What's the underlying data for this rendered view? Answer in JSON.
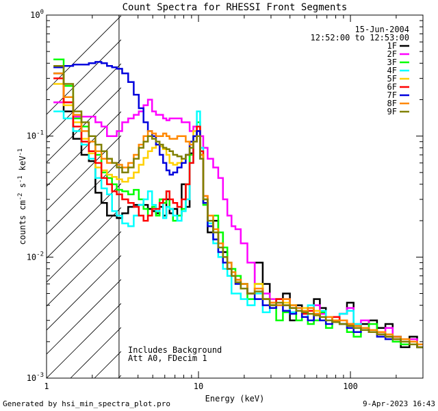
{
  "chart_data": {
    "type": "line",
    "title": "Count Spectra for RHESSI Front Segments",
    "xlabel": "Energy (keV)",
    "ylabel": "counts cm",
    "ylabel_sup1": "-2",
    "ylabel_mid": " s",
    "ylabel_sup2": "-1",
    "ylabel_end": " keV",
    "ylabel_sup3": "-1",
    "xscale": "log",
    "yscale": "log",
    "xlim": [
      1,
      300
    ],
    "ylim": [
      0.001,
      1
    ],
    "x_ticks": [
      {
        "value": 1,
        "label": "1"
      },
      {
        "value": 10,
        "label": "10"
      },
      {
        "value": 100,
        "label": "100"
      }
    ],
    "y_ticks": [
      {
        "value": 1,
        "base": "10",
        "exp": "0"
      },
      {
        "value": 0.1,
        "base": "10",
        "exp": "-1"
      },
      {
        "value": 0.01,
        "base": "10",
        "exp": "-2"
      },
      {
        "value": 0.001,
        "base": "10",
        "exp": "-3"
      }
    ],
    "info": {
      "date": "15-Jun-2004",
      "time_range": "12:52:00 to 12:53:00"
    },
    "annotations": [
      "Includes Background",
      "Att A0, FDecim 1"
    ],
    "hatched_below_keV": 3,
    "energy_grid": [
      1.2,
      1.4,
      1.6,
      1.8,
      2.0,
      2.2,
      2.4,
      2.6,
      2.8,
      3.0,
      3.3,
      3.6,
      3.9,
      4.2,
      4.5,
      4.8,
      5.1,
      5.4,
      5.7,
      6.0,
      6.3,
      6.6,
      7.0,
      7.5,
      8.0,
      8.5,
      9.0,
      9.5,
      10.0,
      10.5,
      11.0,
      12.0,
      13.0,
      14.0,
      15.0,
      16.0,
      17.0,
      18.0,
      20.0,
      22.0,
      25.0,
      28.0,
      31.0,
      34.0,
      38.0,
      42.0,
      46.0,
      50.0,
      55.0,
      60.0,
      66.0,
      72.0,
      80.0,
      90.0,
      100.0,
      110.0,
      125.0,
      140.0,
      160.0,
      180.0,
      200.0,
      230.0,
      260.0,
      290.0
    ],
    "series": [
      {
        "name": "1F",
        "color": "#000000",
        "values": [
          0.33,
          0.16,
          0.095,
          0.07,
          0.062,
          0.034,
          0.028,
          0.022,
          0.022,
          0.021,
          0.023,
          0.026,
          0.027,
          0.027,
          0.027,
          0.025,
          0.024,
          0.023,
          0.026,
          0.022,
          0.03,
          0.023,
          0.025,
          0.022,
          0.04,
          0.026,
          0.072,
          0.1,
          0.11,
          0.07,
          0.028,
          0.016,
          0.02,
          0.016,
          0.011,
          0.009,
          0.007,
          0.007,
          0.006,
          0.005,
          0.009,
          0.006,
          0.004,
          0.0045,
          0.005,
          0.003,
          0.004,
          0.0035,
          0.003,
          0.0045,
          0.0038,
          0.003,
          0.003,
          0.0034,
          0.0042,
          0.0027,
          0.0028,
          0.003,
          0.0026,
          0.0028,
          0.0022,
          0.0018,
          0.0022,
          0.0018
        ]
      },
      {
        "name": "2F",
        "color": "#ff00ff",
        "values": [
          0.19,
          0.19,
          0.145,
          0.145,
          0.145,
          0.13,
          0.12,
          0.1,
          0.1,
          0.11,
          0.13,
          0.14,
          0.15,
          0.16,
          0.18,
          0.2,
          0.16,
          0.15,
          0.15,
          0.14,
          0.135,
          0.14,
          0.14,
          0.14,
          0.13,
          0.13,
          0.11,
          0.12,
          0.12,
          0.1,
          0.08,
          0.065,
          0.055,
          0.045,
          0.03,
          0.022,
          0.018,
          0.017,
          0.013,
          0.009,
          0.006,
          0.005,
          0.0045,
          0.004,
          0.0045,
          0.0035,
          0.0038,
          0.0032,
          0.0036,
          0.004,
          0.0034,
          0.0032,
          0.003,
          0.0034,
          0.0038,
          0.0028,
          0.003,
          0.0025,
          0.0023,
          0.0026,
          0.0022,
          0.002,
          0.0021,
          0.0019
        ]
      },
      {
        "name": "3F",
        "color": "#00ff00",
        "values": [
          0.43,
          0.26,
          0.14,
          0.12,
          0.09,
          0.07,
          0.05,
          0.045,
          0.04,
          0.036,
          0.035,
          0.033,
          0.036,
          0.03,
          0.025,
          0.022,
          0.026,
          0.022,
          0.03,
          0.028,
          0.035,
          0.025,
          0.02,
          0.022,
          0.025,
          0.04,
          0.07,
          0.09,
          0.13,
          0.07,
          0.027,
          0.018,
          0.022,
          0.016,
          0.012,
          0.009,
          0.008,
          0.007,
          0.006,
          0.0045,
          0.006,
          0.0045,
          0.004,
          0.003,
          0.0035,
          0.004,
          0.003,
          0.0032,
          0.0028,
          0.003,
          0.0035,
          0.0026,
          0.003,
          0.0028,
          0.0024,
          0.0022,
          0.0026,
          0.0028,
          0.0024,
          0.0022,
          0.002,
          0.0019,
          0.002,
          0.0018
        ]
      },
      {
        "name": "4F",
        "color": "#00ffff",
        "values": [
          0.16,
          0.14,
          0.11,
          0.085,
          0.065,
          0.045,
          0.037,
          0.033,
          0.024,
          0.022,
          0.019,
          0.018,
          0.022,
          0.027,
          0.03,
          0.035,
          0.027,
          0.024,
          0.028,
          0.021,
          0.026,
          0.025,
          0.022,
          0.02,
          0.024,
          0.03,
          0.06,
          0.1,
          0.16,
          0.08,
          0.03,
          0.019,
          0.013,
          0.01,
          0.008,
          0.007,
          0.005,
          0.005,
          0.0045,
          0.004,
          0.005,
          0.0035,
          0.004,
          0.0045,
          0.004,
          0.0035,
          0.0038,
          0.0032,
          0.004,
          0.0034,
          0.0036,
          0.003,
          0.0032,
          0.0034,
          0.0036,
          0.0028,
          0.0026,
          0.0025,
          0.0024,
          0.0022,
          0.0022,
          0.002,
          0.0019,
          0.0018
        ]
      },
      {
        "name": "5F",
        "color": "#ffd000",
        "values": [
          0.27,
          0.18,
          0.13,
          0.095,
          0.072,
          0.055,
          0.052,
          0.048,
          0.046,
          0.044,
          0.042,
          0.045,
          0.05,
          0.058,
          0.066,
          0.075,
          0.08,
          0.085,
          0.082,
          0.078,
          0.07,
          0.06,
          0.058,
          0.06,
          0.065,
          0.07,
          0.085,
          0.11,
          0.12,
          0.07,
          0.03,
          0.02,
          0.016,
          0.013,
          0.01,
          0.008,
          0.007,
          0.0065,
          0.0055,
          0.005,
          0.006,
          0.0045,
          0.004,
          0.0045,
          0.0042,
          0.004,
          0.0036,
          0.0038,
          0.0034,
          0.0036,
          0.0032,
          0.003,
          0.0032,
          0.003,
          0.0028,
          0.0026,
          0.0025,
          0.0024,
          0.0023,
          0.0022,
          0.0021,
          0.002,
          0.0019,
          0.0018
        ]
      },
      {
        "name": "6F",
        "color": "#ff0000",
        "values": [
          0.3,
          0.19,
          0.12,
          0.09,
          0.075,
          0.06,
          0.045,
          0.04,
          0.035,
          0.033,
          0.03,
          0.028,
          0.026,
          0.022,
          0.02,
          0.022,
          0.025,
          0.025,
          0.028,
          0.03,
          0.035,
          0.03,
          0.028,
          0.026,
          0.03,
          0.04,
          0.06,
          0.09,
          0.12,
          0.075,
          0.032,
          0.02,
          0.016,
          0.013,
          0.01,
          0.008,
          0.007,
          0.0065,
          0.0055,
          0.005,
          0.0055,
          0.0045,
          0.0042,
          0.0045,
          0.004,
          0.0038,
          0.0036,
          0.0034,
          0.0036,
          0.0034,
          0.0032,
          0.003,
          0.0032,
          0.003,
          0.0028,
          0.0026,
          0.0025,
          0.0024,
          0.0023,
          0.0022,
          0.0021,
          0.002,
          0.0019,
          0.0018
        ]
      },
      {
        "name": "7F",
        "color": "#0000dd",
        "values": [
          0.37,
          0.38,
          0.39,
          0.39,
          0.4,
          0.41,
          0.4,
          0.38,
          0.37,
          0.36,
          0.33,
          0.28,
          0.22,
          0.17,
          0.13,
          0.11,
          0.1,
          0.085,
          0.07,
          0.06,
          0.052,
          0.048,
          0.05,
          0.055,
          0.06,
          0.07,
          0.09,
          0.1,
          0.11,
          0.065,
          0.028,
          0.018,
          0.014,
          0.011,
          0.009,
          0.008,
          0.007,
          0.006,
          0.0055,
          0.005,
          0.0045,
          0.004,
          0.0038,
          0.004,
          0.0036,
          0.0034,
          0.0036,
          0.0032,
          0.003,
          0.0034,
          0.003,
          0.0028,
          0.003,
          0.0028,
          0.0026,
          0.0024,
          0.0026,
          0.0024,
          0.0022,
          0.0021,
          0.0022,
          0.002,
          0.0019,
          0.0018
        ]
      },
      {
        "name": "8F",
        "color": "#ff8800",
        "values": [
          0.33,
          0.21,
          0.15,
          0.11,
          0.09,
          0.075,
          0.065,
          0.06,
          0.06,
          0.058,
          0.055,
          0.06,
          0.07,
          0.085,
          0.1,
          0.11,
          0.105,
          0.1,
          0.1,
          0.105,
          0.1,
          0.095,
          0.095,
          0.1,
          0.1,
          0.09,
          0.085,
          0.09,
          0.1,
          0.07,
          0.032,
          0.022,
          0.017,
          0.013,
          0.01,
          0.009,
          0.0075,
          0.0065,
          0.006,
          0.005,
          0.0055,
          0.0045,
          0.0042,
          0.004,
          0.0045,
          0.004,
          0.0038,
          0.0036,
          0.0038,
          0.0034,
          0.0032,
          0.0032,
          0.003,
          0.003,
          0.0028,
          0.0027,
          0.0026,
          0.0025,
          0.0024,
          0.0023,
          0.0022,
          0.0021,
          0.002,
          0.0019
        ]
      },
      {
        "name": "9F",
        "color": "#808000",
        "values": [
          0.38,
          0.27,
          0.16,
          0.13,
          0.1,
          0.085,
          0.075,
          0.065,
          0.06,
          0.055,
          0.05,
          0.055,
          0.065,
          0.08,
          0.09,
          0.1,
          0.095,
          0.09,
          0.085,
          0.08,
          0.078,
          0.075,
          0.07,
          0.068,
          0.065,
          0.07,
          0.08,
          0.09,
          0.1,
          0.065,
          0.03,
          0.02,
          0.016,
          0.012,
          0.01,
          0.008,
          0.007,
          0.0062,
          0.0055,
          0.005,
          0.0052,
          0.0045,
          0.004,
          0.0042,
          0.004,
          0.0038,
          0.0036,
          0.0035,
          0.0034,
          0.0033,
          0.0032,
          0.003,
          0.0029,
          0.0028,
          0.0027,
          0.0026,
          0.0025,
          0.0024,
          0.0023,
          0.0022,
          0.0021,
          0.002,
          0.0019,
          0.0018
        ]
      }
    ]
  },
  "footer": {
    "generator": "Generated by hsi_min_spectra_plot.pro",
    "timestamp": "9-Apr-2023 16:43"
  }
}
